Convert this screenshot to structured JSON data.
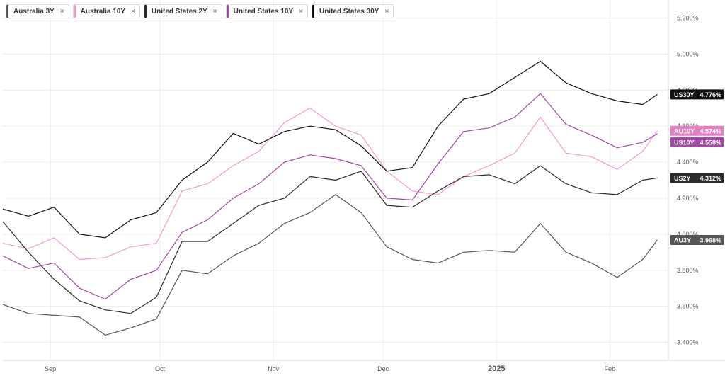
{
  "legend": [
    {
      "name": "Australia 3Y",
      "color": "#555555",
      "close": "×"
    },
    {
      "name": "Australia 10Y",
      "color": "#f29ad1",
      "close": "×"
    },
    {
      "name": "United States 2Y",
      "color": "#2b2b2b",
      "close": "×"
    },
    {
      "name": "United States 10Y",
      "color": "#a44aa4",
      "close": "×"
    },
    {
      "name": "United States 30Y",
      "color": "#111111",
      "close": "×"
    }
  ],
  "chart_data": {
    "type": "line",
    "y_axis": {
      "min": 3.3,
      "max": 5.3,
      "position": "right",
      "ticks": [
        {
          "v": 3.4,
          "label": "3.400%"
        },
        {
          "v": 3.6,
          "label": "3.600%"
        },
        {
          "v": 3.8,
          "label": "3.800%"
        },
        {
          "v": 4.0,
          "label": "4.000%"
        },
        {
          "v": 4.2,
          "label": "4.200%"
        },
        {
          "v": 4.4,
          "label": "4.400%"
        },
        {
          "v": 4.6,
          "label": "4.600%"
        },
        {
          "v": 4.8,
          "label": "4.800%"
        },
        {
          "v": 5.0,
          "label": "5.000%"
        },
        {
          "v": 5.2,
          "label": "5.200%"
        }
      ]
    },
    "x_axis": {
      "start": "2024-08-19",
      "end": "2025-02-17",
      "ticks": [
        {
          "date": "2024-09-01",
          "label": "Sep",
          "bold": false
        },
        {
          "date": "2024-10-01",
          "label": "Oct",
          "bold": false
        },
        {
          "date": "2024-11-01",
          "label": "Nov",
          "bold": false
        },
        {
          "date": "2024-12-01",
          "label": "Dec",
          "bold": false
        },
        {
          "date": "2025-01-01",
          "label": "2025",
          "bold": true
        },
        {
          "date": "2025-02-01",
          "label": "Feb",
          "bold": false
        }
      ]
    },
    "grid": true,
    "series": [
      {
        "name": "Australia 3Y",
        "tag": "AU3Y",
        "last_label": "3.968%",
        "color": "#555555",
        "tag_color": "#555555",
        "points": [
          [
            "2024-08-19",
            3.61
          ],
          [
            "2024-08-26",
            3.56
          ],
          [
            "2024-09-02",
            3.55
          ],
          [
            "2024-09-09",
            3.54
          ],
          [
            "2024-09-16",
            3.44
          ],
          [
            "2024-09-23",
            3.48
          ],
          [
            "2024-09-30",
            3.53
          ],
          [
            "2024-10-07",
            3.8
          ],
          [
            "2024-10-14",
            3.78
          ],
          [
            "2024-10-21",
            3.88
          ],
          [
            "2024-10-28",
            3.95
          ],
          [
            "2024-11-04",
            4.06
          ],
          [
            "2024-11-11",
            4.12
          ],
          [
            "2024-11-18",
            4.22
          ],
          [
            "2024-11-25",
            4.12
          ],
          [
            "2024-12-02",
            3.93
          ],
          [
            "2024-12-09",
            3.86
          ],
          [
            "2024-12-16",
            3.84
          ],
          [
            "2024-12-23",
            3.9
          ],
          [
            "2024-12-30",
            3.91
          ],
          [
            "2025-01-06",
            3.9
          ],
          [
            "2025-01-13",
            4.06
          ],
          [
            "2025-01-20",
            3.9
          ],
          [
            "2025-01-27",
            3.84
          ],
          [
            "2025-02-03",
            3.76
          ],
          [
            "2025-02-10",
            3.86
          ],
          [
            "2025-02-14",
            3.968
          ]
        ]
      },
      {
        "name": "Australia 10Y",
        "tag": "AU10Y",
        "last_label": "4.574%",
        "color": "#f29ad1",
        "tag_color": "#e37fc3",
        "points": [
          [
            "2024-08-19",
            3.95
          ],
          [
            "2024-08-26",
            3.92
          ],
          [
            "2024-09-02",
            3.98
          ],
          [
            "2024-09-09",
            3.86
          ],
          [
            "2024-09-16",
            3.87
          ],
          [
            "2024-09-23",
            3.93
          ],
          [
            "2024-09-30",
            3.95
          ],
          [
            "2024-10-07",
            4.24
          ],
          [
            "2024-10-14",
            4.28
          ],
          [
            "2024-10-21",
            4.38
          ],
          [
            "2024-10-28",
            4.46
          ],
          [
            "2024-11-04",
            4.62
          ],
          [
            "2024-11-11",
            4.7
          ],
          [
            "2024-11-18",
            4.6
          ],
          [
            "2024-11-25",
            4.55
          ],
          [
            "2024-12-02",
            4.35
          ],
          [
            "2024-12-09",
            4.24
          ],
          [
            "2024-12-16",
            4.22
          ],
          [
            "2024-12-23",
            4.32
          ],
          [
            "2024-12-30",
            4.38
          ],
          [
            "2025-01-06",
            4.45
          ],
          [
            "2025-01-13",
            4.65
          ],
          [
            "2025-01-20",
            4.45
          ],
          [
            "2025-01-27",
            4.43
          ],
          [
            "2025-02-03",
            4.36
          ],
          [
            "2025-02-10",
            4.46
          ],
          [
            "2025-02-14",
            4.574
          ]
        ]
      },
      {
        "name": "United States 2Y",
        "tag": "US2Y",
        "last_label": "4.312%",
        "color": "#2b2b2b",
        "tag_color": "#2b2b2b",
        "points": [
          [
            "2024-08-19",
            4.07
          ],
          [
            "2024-08-26",
            3.9
          ],
          [
            "2024-09-02",
            3.75
          ],
          [
            "2024-09-09",
            3.63
          ],
          [
            "2024-09-16",
            3.58
          ],
          [
            "2024-09-23",
            3.56
          ],
          [
            "2024-09-30",
            3.65
          ],
          [
            "2024-10-07",
            3.96
          ],
          [
            "2024-10-14",
            3.96
          ],
          [
            "2024-10-21",
            4.06
          ],
          [
            "2024-10-28",
            4.16
          ],
          [
            "2024-11-04",
            4.2
          ],
          [
            "2024-11-11",
            4.32
          ],
          [
            "2024-11-18",
            4.3
          ],
          [
            "2024-11-25",
            4.35
          ],
          [
            "2024-12-02",
            4.16
          ],
          [
            "2024-12-09",
            4.15
          ],
          [
            "2024-12-16",
            4.24
          ],
          [
            "2024-12-23",
            4.32
          ],
          [
            "2024-12-30",
            4.33
          ],
          [
            "2025-01-06",
            4.28
          ],
          [
            "2025-01-13",
            4.38
          ],
          [
            "2025-01-20",
            4.28
          ],
          [
            "2025-01-27",
            4.23
          ],
          [
            "2025-02-03",
            4.22
          ],
          [
            "2025-02-10",
            4.3
          ],
          [
            "2025-02-14",
            4.312
          ]
        ]
      },
      {
        "name": "United States 10Y",
        "tag": "US10Y",
        "last_label": "4.558%",
        "color": "#a44aa4",
        "tag_color": "#a44aa4",
        "points": [
          [
            "2024-08-19",
            3.88
          ],
          [
            "2024-08-26",
            3.81
          ],
          [
            "2024-09-02",
            3.84
          ],
          [
            "2024-09-09",
            3.7
          ],
          [
            "2024-09-16",
            3.64
          ],
          [
            "2024-09-23",
            3.75
          ],
          [
            "2024-09-30",
            3.8
          ],
          [
            "2024-10-07",
            4.01
          ],
          [
            "2024-10-14",
            4.08
          ],
          [
            "2024-10-21",
            4.2
          ],
          [
            "2024-10-28",
            4.28
          ],
          [
            "2024-11-04",
            4.4
          ],
          [
            "2024-11-11",
            4.44
          ],
          [
            "2024-11-18",
            4.42
          ],
          [
            "2024-11-25",
            4.38
          ],
          [
            "2024-12-02",
            4.2
          ],
          [
            "2024-12-09",
            4.19
          ],
          [
            "2024-12-16",
            4.39
          ],
          [
            "2024-12-23",
            4.57
          ],
          [
            "2024-12-30",
            4.59
          ],
          [
            "2025-01-06",
            4.65
          ],
          [
            "2025-01-13",
            4.78
          ],
          [
            "2025-01-20",
            4.61
          ],
          [
            "2025-01-27",
            4.55
          ],
          [
            "2025-02-03",
            4.48
          ],
          [
            "2025-02-10",
            4.51
          ],
          [
            "2025-02-14",
            4.558
          ]
        ]
      },
      {
        "name": "United States 30Y",
        "tag": "US30Y",
        "last_label": "4.776%",
        "color": "#111111",
        "tag_color": "#111111",
        "points": [
          [
            "2024-08-19",
            4.14
          ],
          [
            "2024-08-26",
            4.1
          ],
          [
            "2024-09-02",
            4.15
          ],
          [
            "2024-09-09",
            4.0
          ],
          [
            "2024-09-16",
            3.98
          ],
          [
            "2024-09-23",
            4.08
          ],
          [
            "2024-09-30",
            4.12
          ],
          [
            "2024-10-07",
            4.3
          ],
          [
            "2024-10-14",
            4.4
          ],
          [
            "2024-10-21",
            4.56
          ],
          [
            "2024-10-28",
            4.5
          ],
          [
            "2024-11-04",
            4.57
          ],
          [
            "2024-11-11",
            4.6
          ],
          [
            "2024-11-18",
            4.58
          ],
          [
            "2024-11-25",
            4.49
          ],
          [
            "2024-12-02",
            4.35
          ],
          [
            "2024-12-09",
            4.37
          ],
          [
            "2024-12-16",
            4.6
          ],
          [
            "2024-12-23",
            4.75
          ],
          [
            "2024-12-30",
            4.78
          ],
          [
            "2025-01-06",
            4.87
          ],
          [
            "2025-01-13",
            4.96
          ],
          [
            "2025-01-20",
            4.84
          ],
          [
            "2025-01-27",
            4.78
          ],
          [
            "2025-02-03",
            4.74
          ],
          [
            "2025-02-10",
            4.72
          ],
          [
            "2025-02-14",
            4.776
          ]
        ]
      }
    ]
  }
}
